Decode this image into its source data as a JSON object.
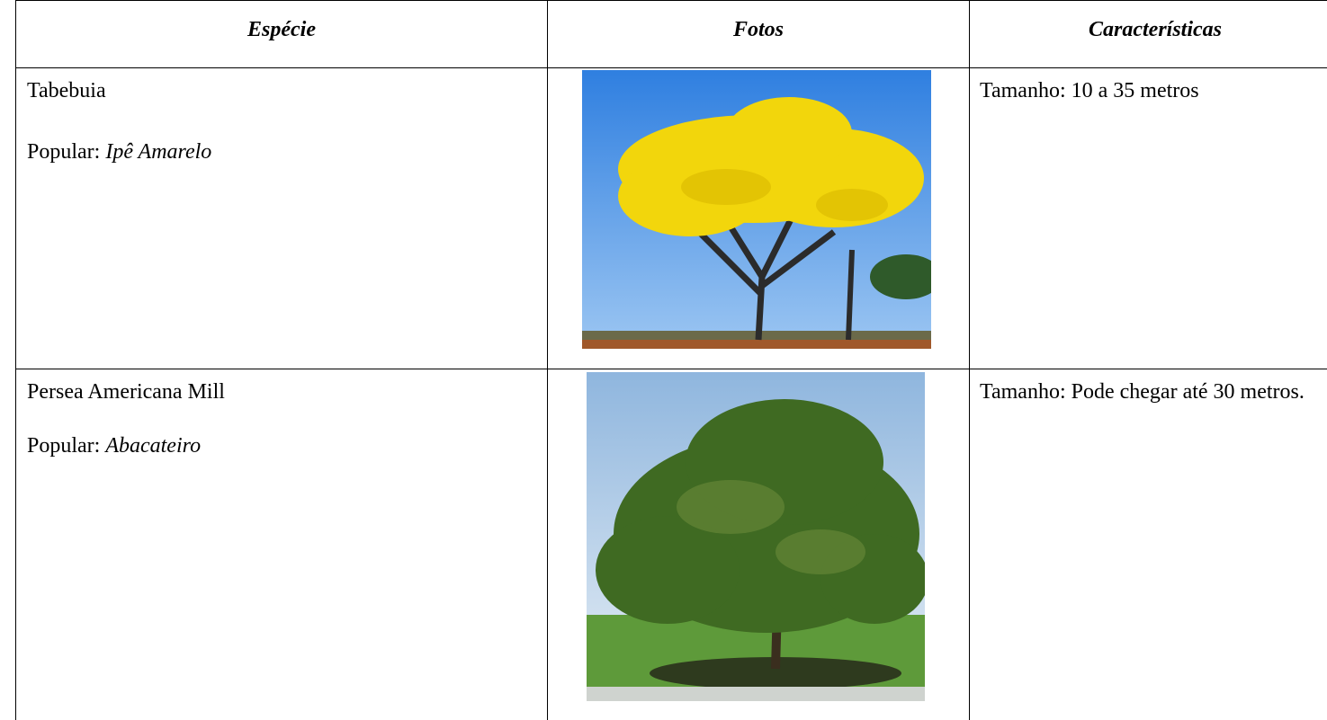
{
  "table": {
    "header": [
      "Espécie",
      "Fotos",
      "Características"
    ],
    "rows": [
      {
        "species": "Tabebuia",
        "popular_label": "Popular:",
        "popular_name": "Ipê Amarelo",
        "characteristics": "Tamanho: 10 a 35 metros"
      },
      {
        "species": "Persea Americana Mill",
        "popular_label": "Popular:",
        "popular_name": "Abacateiro",
        "characteristics": "Tamanho: Pode chegar até 30 metros."
      }
    ]
  }
}
